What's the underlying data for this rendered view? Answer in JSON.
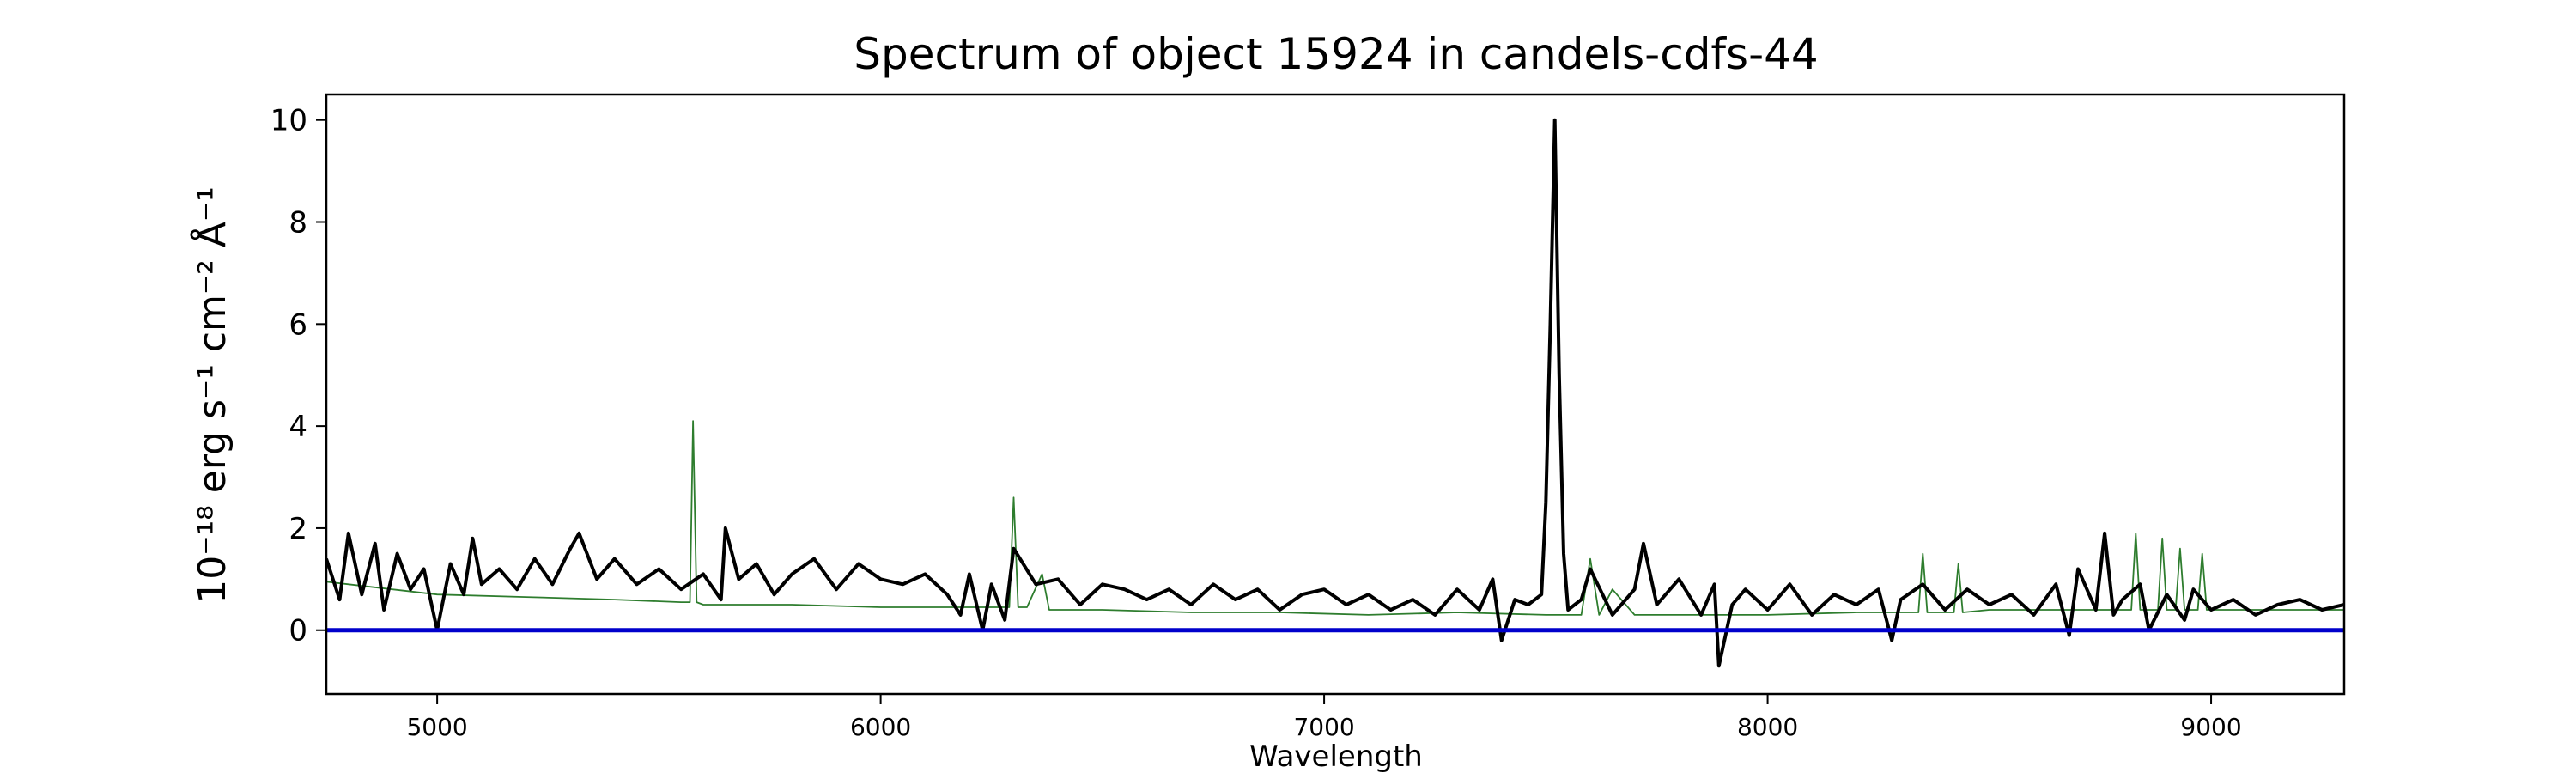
{
  "chart_data": {
    "type": "line",
    "title": "Spectrum of object 15924 in candels-cdfs-44",
    "xlabel": "Wavelength",
    "ylabel": "10⁻¹⁸ erg s⁻¹ cm⁻² Å⁻¹",
    "xlim": [
      4750,
      9300
    ],
    "ylim": [
      -1.25,
      10.5
    ],
    "xticks": [
      5000,
      6000,
      7000,
      8000,
      9000
    ],
    "yticks": [
      0,
      2,
      4,
      6,
      8,
      10
    ],
    "grid": false,
    "legend": "none",
    "series": [
      {
        "color": "#000000",
        "style": "thick",
        "x": [
          4750,
          4780,
          4800,
          4830,
          4860,
          4880,
          4910,
          4940,
          4970,
          5000,
          5030,
          5060,
          5080,
          5100,
          5140,
          5180,
          5220,
          5260,
          5300,
          5320,
          5360,
          5400,
          5450,
          5500,
          5550,
          5600,
          5640,
          5650,
          5680,
          5720,
          5760,
          5800,
          5850,
          5900,
          5950,
          6000,
          6050,
          6100,
          6150,
          6180,
          6200,
          6230,
          6250,
          6280,
          6300,
          6350,
          6400,
          6450,
          6500,
          6550,
          6600,
          6650,
          6700,
          6750,
          6800,
          6850,
          6900,
          6950,
          7000,
          7050,
          7100,
          7150,
          7200,
          7250,
          7300,
          7350,
          7380,
          7400,
          7430,
          7460,
          7490,
          7500,
          7510,
          7520,
          7530,
          7540,
          7550,
          7580,
          7600,
          7650,
          7700,
          7720,
          7750,
          7800,
          7850,
          7880,
          7890,
          7920,
          7950,
          8000,
          8050,
          8100,
          8150,
          8200,
          8250,
          8280,
          8300,
          8350,
          8400,
          8450,
          8500,
          8550,
          8600,
          8650,
          8680,
          8700,
          8740,
          8760,
          8780,
          8800,
          8840,
          8860,
          8900,
          8940,
          8960,
          9000,
          9050,
          9100,
          9150,
          9200,
          9250,
          9300
        ],
        "y": [
          1.4,
          0.6,
          1.9,
          0.7,
          1.7,
          0.4,
          1.5,
          0.8,
          1.2,
          0.0,
          1.3,
          0.7,
          1.8,
          0.9,
          1.2,
          0.8,
          1.4,
          0.9,
          1.6,
          1.9,
          1.0,
          1.4,
          0.9,
          1.2,
          0.8,
          1.1,
          0.6,
          2.0,
          1.0,
          1.3,
          0.7,
          1.1,
          1.4,
          0.8,
          1.3,
          1.0,
          0.9,
          1.1,
          0.7,
          0.3,
          1.1,
          0.0,
          0.9,
          0.2,
          1.6,
          0.9,
          1.0,
          0.5,
          0.9,
          0.8,
          0.6,
          0.8,
          0.5,
          0.9,
          0.6,
          0.8,
          0.4,
          0.7,
          0.8,
          0.5,
          0.7,
          0.4,
          0.6,
          0.3,
          0.8,
          0.4,
          1.0,
          -0.2,
          0.6,
          0.5,
          0.7,
          2.5,
          6.0,
          10.0,
          5.0,
          1.5,
          0.4,
          0.6,
          1.2,
          0.3,
          0.8,
          1.7,
          0.5,
          1.0,
          0.3,
          0.9,
          -0.7,
          0.5,
          0.8,
          0.4,
          0.9,
          0.3,
          0.7,
          0.5,
          0.8,
          -0.2,
          0.6,
          0.9,
          0.4,
          0.8,
          0.5,
          0.7,
          0.3,
          0.9,
          -0.1,
          1.2,
          0.4,
          1.9,
          0.3,
          0.6,
          0.9,
          0.0,
          0.7,
          0.2,
          0.8,
          0.4,
          0.6,
          0.3,
          0.5,
          0.6,
          0.4,
          0.5
        ]
      },
      {
        "color": "#2e7d2e",
        "style": "thin",
        "x": [
          4750,
          5000,
          5200,
          5400,
          5550,
          5570,
          5577,
          5585,
          5600,
          5800,
          6000,
          6200,
          6290,
          6300,
          6310,
          6330,
          6364,
          6380,
          6500,
          6700,
          6900,
          7100,
          7300,
          7500,
          7580,
          7600,
          7620,
          7650,
          7700,
          7800,
          7900,
          8000,
          8200,
          8300,
          8340,
          8350,
          8360,
          8420,
          8430,
          8440,
          8500,
          8600,
          8700,
          8800,
          8820,
          8830,
          8840,
          8880,
          8890,
          8900,
          8920,
          8930,
          8940,
          8970,
          8980,
          8990,
          9100,
          9300
        ],
        "y": [
          0.95,
          0.7,
          0.65,
          0.6,
          0.55,
          0.55,
          4.1,
          0.55,
          0.5,
          0.5,
          0.45,
          0.45,
          0.45,
          2.6,
          0.45,
          0.45,
          1.1,
          0.4,
          0.4,
          0.35,
          0.35,
          0.3,
          0.35,
          0.3,
          0.3,
          1.4,
          0.3,
          0.8,
          0.3,
          0.3,
          0.3,
          0.3,
          0.35,
          0.35,
          0.35,
          1.5,
          0.35,
          0.35,
          1.3,
          0.35,
          0.4,
          0.4,
          0.4,
          0.4,
          0.4,
          1.9,
          0.4,
          0.4,
          1.8,
          0.4,
          0.4,
          1.6,
          0.4,
          0.4,
          1.5,
          0.4,
          0.4,
          0.4
        ]
      },
      {
        "color": "#0000cc",
        "style": "zero",
        "x": [
          4750,
          9300
        ],
        "y": [
          0,
          0
        ]
      }
    ]
  }
}
